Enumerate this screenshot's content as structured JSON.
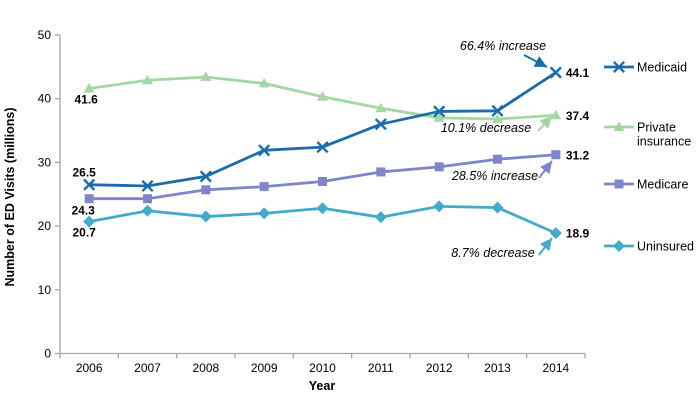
{
  "chart_data": {
    "type": "line",
    "title": "",
    "xlabel": "Year",
    "ylabel": "Number of ED  Visits (millions)",
    "ylim": [
      0,
      50
    ],
    "ytick_interval": 10,
    "yticks": [
      "0",
      "10",
      "20",
      "30",
      "40",
      "50"
    ],
    "grid": false,
    "legend_position": "right",
    "axis_color": "#a6a6a6",
    "categories": [
      "2006",
      "2007",
      "2008",
      "2009",
      "2010",
      "2011",
      "2012",
      "2013",
      "2014"
    ],
    "series": [
      {
        "name": "Medicaid",
        "marker": "x",
        "color": "#1b6ca9",
        "values": [
          26.5,
          26.3,
          27.8,
          31.9,
          32.4,
          36.0,
          38.0,
          38.1,
          44.1
        ],
        "endpoint_labels": {
          "first": "26.5",
          "last": "44.1"
        }
      },
      {
        "name": "Private insurance",
        "marker": "triangle",
        "color": "#a5d7a5",
        "values": [
          41.6,
          42.9,
          43.4,
          42.4,
          40.3,
          38.5,
          37.0,
          36.8,
          37.4
        ],
        "endpoint_labels": {
          "first": "41.6",
          "last": "37.4"
        }
      },
      {
        "name": "Medicare",
        "marker": "square",
        "color": "#8084c8",
        "values": [
          24.3,
          24.3,
          25.7,
          26.2,
          27.0,
          28.5,
          29.3,
          30.5,
          31.2
        ],
        "endpoint_labels": {
          "first": "24.3",
          "last": "31.2"
        }
      },
      {
        "name": "Uninsured",
        "marker": "diamond",
        "color": "#45aac9",
        "values": [
          20.7,
          22.4,
          21.5,
          22.0,
          22.8,
          21.4,
          23.1,
          22.9,
          18.9
        ],
        "endpoint_labels": {
          "first": "20.7",
          "last": "18.9"
        }
      }
    ],
    "annotations": [
      {
        "text": "66.4% increase",
        "series": "Medicaid"
      },
      {
        "text": "10.1% decrease",
        "series": "Private insurance"
      },
      {
        "text": "28.5% increase",
        "series": "Medicare"
      },
      {
        "text": "8.7% decrease",
        "series": "Uninsured"
      }
    ]
  }
}
